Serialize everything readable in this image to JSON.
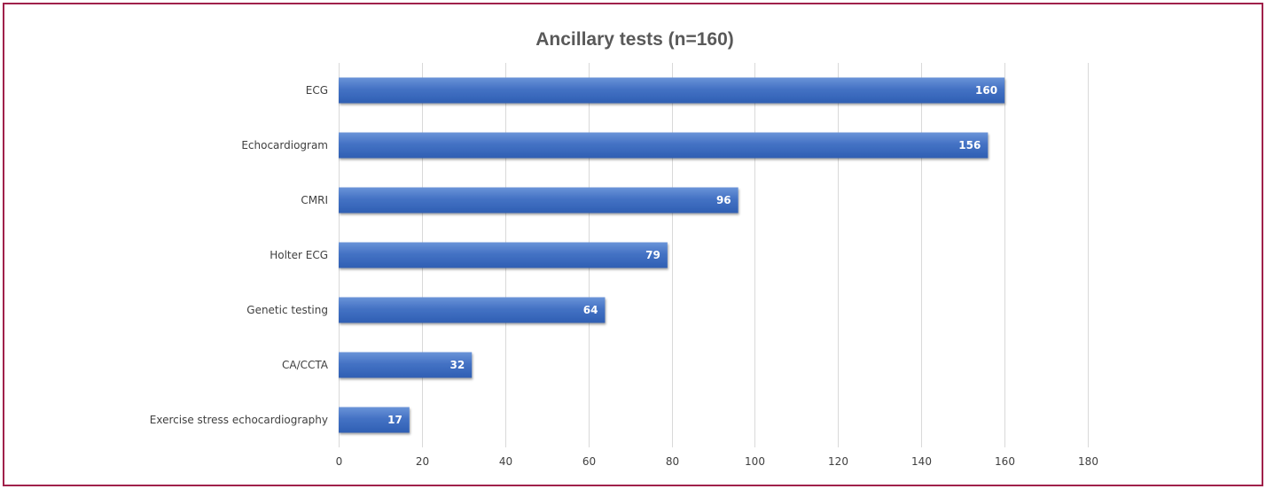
{
  "chart_data": {
    "type": "bar",
    "orientation": "horizontal",
    "title": "Ancillary tests (n=160)",
    "xlabel": "",
    "ylabel": "",
    "categories": [
      "ECG",
      "Echocardiogram",
      "CMRI",
      "Holter ECG",
      "Genetic testing",
      "CA/CCTA",
      "Exercise stress echocardiography"
    ],
    "values": [
      160,
      156,
      96,
      79,
      64,
      32,
      17
    ],
    "xlim": [
      0,
      180
    ],
    "xticks": [
      0,
      20,
      40,
      60,
      80,
      100,
      120,
      140,
      160,
      180
    ],
    "grid": true,
    "data_labels": true,
    "legend": "none",
    "colors": {
      "bar": "#4472c4",
      "bar_dark": "#2f5597",
      "grid": "#d9d9d9",
      "frame": "#a0214a",
      "title": "#595959"
    }
  }
}
